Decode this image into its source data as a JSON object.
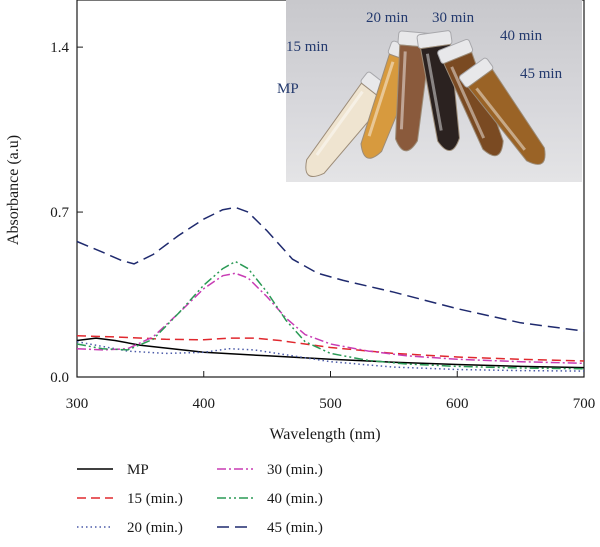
{
  "chart_data": {
    "type": "line",
    "xlabel": "Wavelength (nm)",
    "ylabel": "Absorbance (a.u)",
    "xlim": [
      300,
      700
    ],
    "ylim": [
      0,
      1.6
    ],
    "xticks": [
      "300",
      "400",
      "500",
      "600",
      "700"
    ],
    "xtick_values": [
      300,
      400,
      500,
      600,
      700
    ],
    "yticks": [
      "0.0",
      "0.7",
      "1.4"
    ],
    "ytick_values": [
      0,
      0.7,
      1.4
    ],
    "grid": false,
    "legend_position": "bottom-left, below plot",
    "series": [
      {
        "name": "MP",
        "color": "#000000",
        "dash": "solid",
        "points": [
          [
            300,
            0.155
          ],
          [
            315,
            0.165
          ],
          [
            330,
            0.155
          ],
          [
            350,
            0.135
          ],
          [
            375,
            0.12
          ],
          [
            400,
            0.105
          ],
          [
            450,
            0.09
          ],
          [
            500,
            0.075
          ],
          [
            550,
            0.063
          ],
          [
            600,
            0.053
          ],
          [
            650,
            0.045
          ],
          [
            700,
            0.04
          ]
        ]
      },
      {
        "name": "15 (min.)",
        "color": "#e0282e",
        "dash": "dashed",
        "points": [
          [
            300,
            0.175
          ],
          [
            330,
            0.17
          ],
          [
            370,
            0.16
          ],
          [
            400,
            0.158
          ],
          [
            420,
            0.165
          ],
          [
            440,
            0.165
          ],
          [
            460,
            0.155
          ],
          [
            480,
            0.14
          ],
          [
            500,
            0.125
          ],
          [
            550,
            0.1
          ],
          [
            600,
            0.085
          ],
          [
            650,
            0.075
          ],
          [
            700,
            0.068
          ]
        ]
      },
      {
        "name": "20 (min.)",
        "color": "#4a5aa8",
        "dash": "dotted",
        "points": [
          [
            300,
            0.15
          ],
          [
            320,
            0.13
          ],
          [
            340,
            0.11
          ],
          [
            370,
            0.1
          ],
          [
            400,
            0.105
          ],
          [
            420,
            0.12
          ],
          [
            440,
            0.115
          ],
          [
            470,
            0.09
          ],
          [
            500,
            0.065
          ],
          [
            550,
            0.042
          ],
          [
            600,
            0.032
          ],
          [
            650,
            0.027
          ],
          [
            700,
            0.025
          ]
        ]
      },
      {
        "name": "30 (min.)",
        "color": "#c83cb4",
        "dash": "dashdot",
        "points": [
          [
            300,
            0.12
          ],
          [
            320,
            0.115
          ],
          [
            340,
            0.12
          ],
          [
            360,
            0.17
          ],
          [
            380,
            0.27
          ],
          [
            400,
            0.375
          ],
          [
            415,
            0.43
          ],
          [
            425,
            0.44
          ],
          [
            435,
            0.42
          ],
          [
            450,
            0.34
          ],
          [
            465,
            0.25
          ],
          [
            480,
            0.18
          ],
          [
            500,
            0.14
          ],
          [
            530,
            0.11
          ],
          [
            560,
            0.09
          ],
          [
            600,
            0.075
          ],
          [
            650,
            0.065
          ],
          [
            700,
            0.058
          ]
        ]
      },
      {
        "name": "40 (min.)",
        "color": "#2a9a55",
        "dash": "dashdotdot",
        "points": [
          [
            300,
            0.14
          ],
          [
            320,
            0.12
          ],
          [
            340,
            0.115
          ],
          [
            360,
            0.16
          ],
          [
            380,
            0.27
          ],
          [
            400,
            0.39
          ],
          [
            415,
            0.46
          ],
          [
            425,
            0.49
          ],
          [
            435,
            0.46
          ],
          [
            450,
            0.36
          ],
          [
            465,
            0.24
          ],
          [
            480,
            0.15
          ],
          [
            500,
            0.1
          ],
          [
            530,
            0.07
          ],
          [
            560,
            0.055
          ],
          [
            600,
            0.045
          ],
          [
            650,
            0.038
          ],
          [
            700,
            0.035
          ]
        ]
      },
      {
        "name": "45 (min.)",
        "color": "#1f2a6e",
        "dash": "longdash",
        "points": [
          [
            300,
            0.575
          ],
          [
            320,
            0.53
          ],
          [
            335,
            0.495
          ],
          [
            345,
            0.48
          ],
          [
            360,
            0.52
          ],
          [
            380,
            0.6
          ],
          [
            400,
            0.67
          ],
          [
            415,
            0.71
          ],
          [
            425,
            0.72
          ],
          [
            435,
            0.7
          ],
          [
            450,
            0.62
          ],
          [
            470,
            0.5
          ],
          [
            490,
            0.44
          ],
          [
            510,
            0.41
          ],
          [
            550,
            0.36
          ],
          [
            600,
            0.29
          ],
          [
            650,
            0.23
          ],
          [
            700,
            0.195
          ]
        ]
      }
    ],
    "inset_photo": {
      "labels": [
        "MP",
        "15 min",
        "20 min",
        "30 min",
        "40 min",
        "45 min"
      ],
      "tube_colors": [
        "#efe4d0",
        "#d79a3e",
        "#8a5a3c",
        "#2b2220",
        "#7a4a22",
        "#9a6326"
      ]
    }
  }
}
